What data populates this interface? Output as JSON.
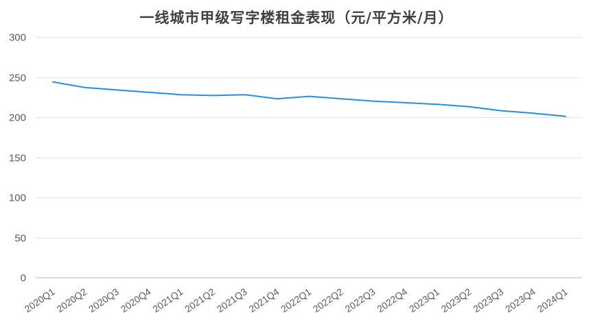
{
  "chart_data": {
    "type": "line",
    "title": "一线城市甲级写字楼租金表现（元/平方米/月）",
    "xlabel": "",
    "ylabel": "",
    "categories": [
      "2020Q1",
      "2020Q2",
      "2020Q3",
      "2020Q4",
      "2021Q1",
      "2021Q2",
      "2021Q3",
      "2021Q4",
      "2022Q1",
      "2022Q2",
      "2022Q3",
      "2022Q4",
      "2023Q1",
      "2023Q2",
      "2023Q3",
      "2023Q4",
      "2024Q1"
    ],
    "series": [
      {
        "values": [
          244,
          237,
          234,
          231,
          228,
          227,
          228,
          223,
          226,
          223,
          220,
          218,
          216,
          213,
          208,
          205,
          201
        ],
        "color": "#1f8fe8"
      }
    ],
    "ylim": [
      0,
      300
    ],
    "yticks": [
      0,
      50,
      100,
      150,
      200,
      250,
      300
    ],
    "grid": true,
    "legend": "none"
  }
}
